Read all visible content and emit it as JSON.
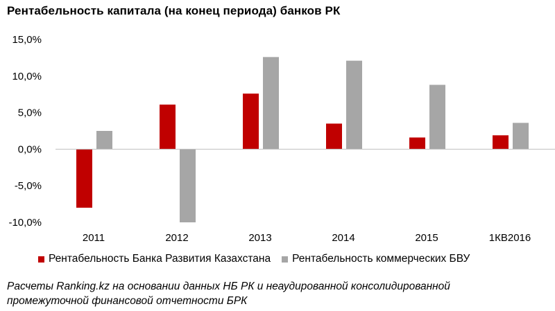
{
  "chart_data": {
    "type": "bar",
    "title": "Рентабельность  капитала  (на конец периода)  банков  РК",
    "categories": [
      "2011",
      "2012",
      "2013",
      "2014",
      "2015",
      "1КВ2016"
    ],
    "series": [
      {
        "name": "Рентабельность Банка Развития Казахстана",
        "color": "#c00000",
        "values": [
          -8.0,
          6.1,
          7.6,
          3.5,
          1.6,
          1.9
        ]
      },
      {
        "name": "Рентабельность коммерческих БВУ",
        "color": "#a6a6a6",
        "values": [
          2.5,
          -10.0,
          12.6,
          12.1,
          8.8,
          3.6
        ]
      }
    ],
    "ylim": [
      -10,
      15
    ],
    "yticks": [
      -10,
      -5,
      0,
      5,
      10,
      15
    ],
    "ytick_labels": [
      "-10,0%",
      "-5,0%",
      "0,0%",
      "5,0%",
      "10,0%",
      "15,0%"
    ],
    "xlabel": "",
    "ylabel": "",
    "legend_position": "bottom"
  },
  "legend": [
    {
      "label": "Рентабельность Банка Развития Казахстана",
      "color": "#c00000"
    },
    {
      "label": "Рентабельность коммерческих БВУ",
      "color": "#a6a6a6"
    }
  ],
  "footnote": "Расчеты Ranking.kz на основании данных НБ РК и неаудированной консолидированной промежуточной финансовой отчетности БРК"
}
